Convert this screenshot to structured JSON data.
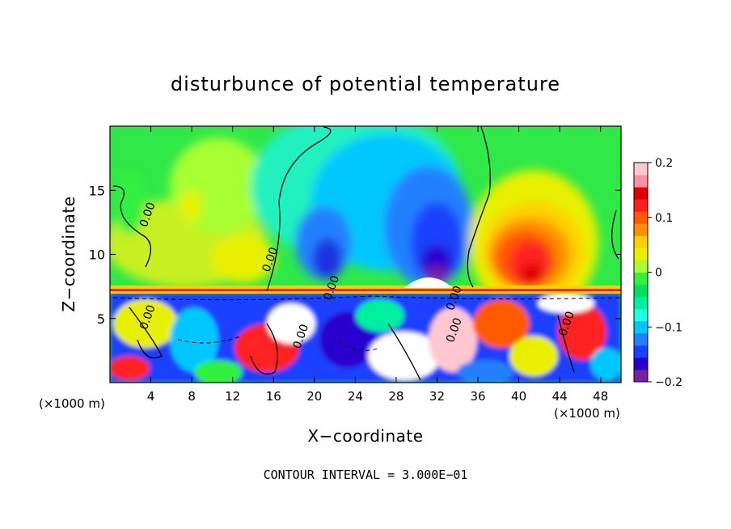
{
  "chart_data": {
    "type": "heatmap",
    "title": "disturbunce of potential temperature",
    "xlabel": "X−coordinate",
    "ylabel": "Z−coordinate",
    "x_unit": "(×1000 m)",
    "y_unit": "(×1000 m)",
    "xlim": [
      0,
      50
    ],
    "ylim": [
      0,
      20
    ],
    "x_ticks": [
      4,
      8,
      12,
      16,
      20,
      24,
      28,
      32,
      36,
      40,
      44,
      48
    ],
    "y_ticks": [
      5,
      10,
      15
    ],
    "footer": "CONTOUR INTERVAL = 3.000E−01",
    "contour_labels": [
      {
        "text": "0.00",
        "x": 4.0,
        "y": 13.0
      },
      {
        "text": "0.00",
        "x": 16.0,
        "y": 9.5
      },
      {
        "text": "0.00",
        "x": 22.0,
        "y": 7.3
      },
      {
        "text": "0.00",
        "x": 34.0,
        "y": 6.5
      },
      {
        "text": "0.00",
        "x": 4.0,
        "y": 5.0
      },
      {
        "text": "0.00",
        "x": 19.0,
        "y": 3.5
      },
      {
        "text": "0.00",
        "x": 34.0,
        "y": 4.0
      },
      {
        "text": "0.00",
        "x": 45.0,
        "y": 4.5
      }
    ],
    "colorbar": {
      "range": [
        -0.2,
        0.2
      ],
      "tick_labels": [
        "0.2",
        "0.1",
        "0",
        "−0.1",
        "−0.2"
      ],
      "tick_values": [
        0.2,
        0.1,
        0,
        -0.1,
        -0.2
      ],
      "colors": [
        "#7a1fa2",
        "#2a00d0",
        "#1a40ff",
        "#2080ff",
        "#00c8ff",
        "#20ffe0",
        "#00f0a0",
        "#00e060",
        "#30f040",
        "#a8ff30",
        "#e8f000",
        "#ffd000",
        "#ff9000",
        "#ff5a00",
        "#ff2020",
        "#e00000",
        "#ff90a0",
        "#ffc8d0"
      ]
    },
    "grid": false
  }
}
